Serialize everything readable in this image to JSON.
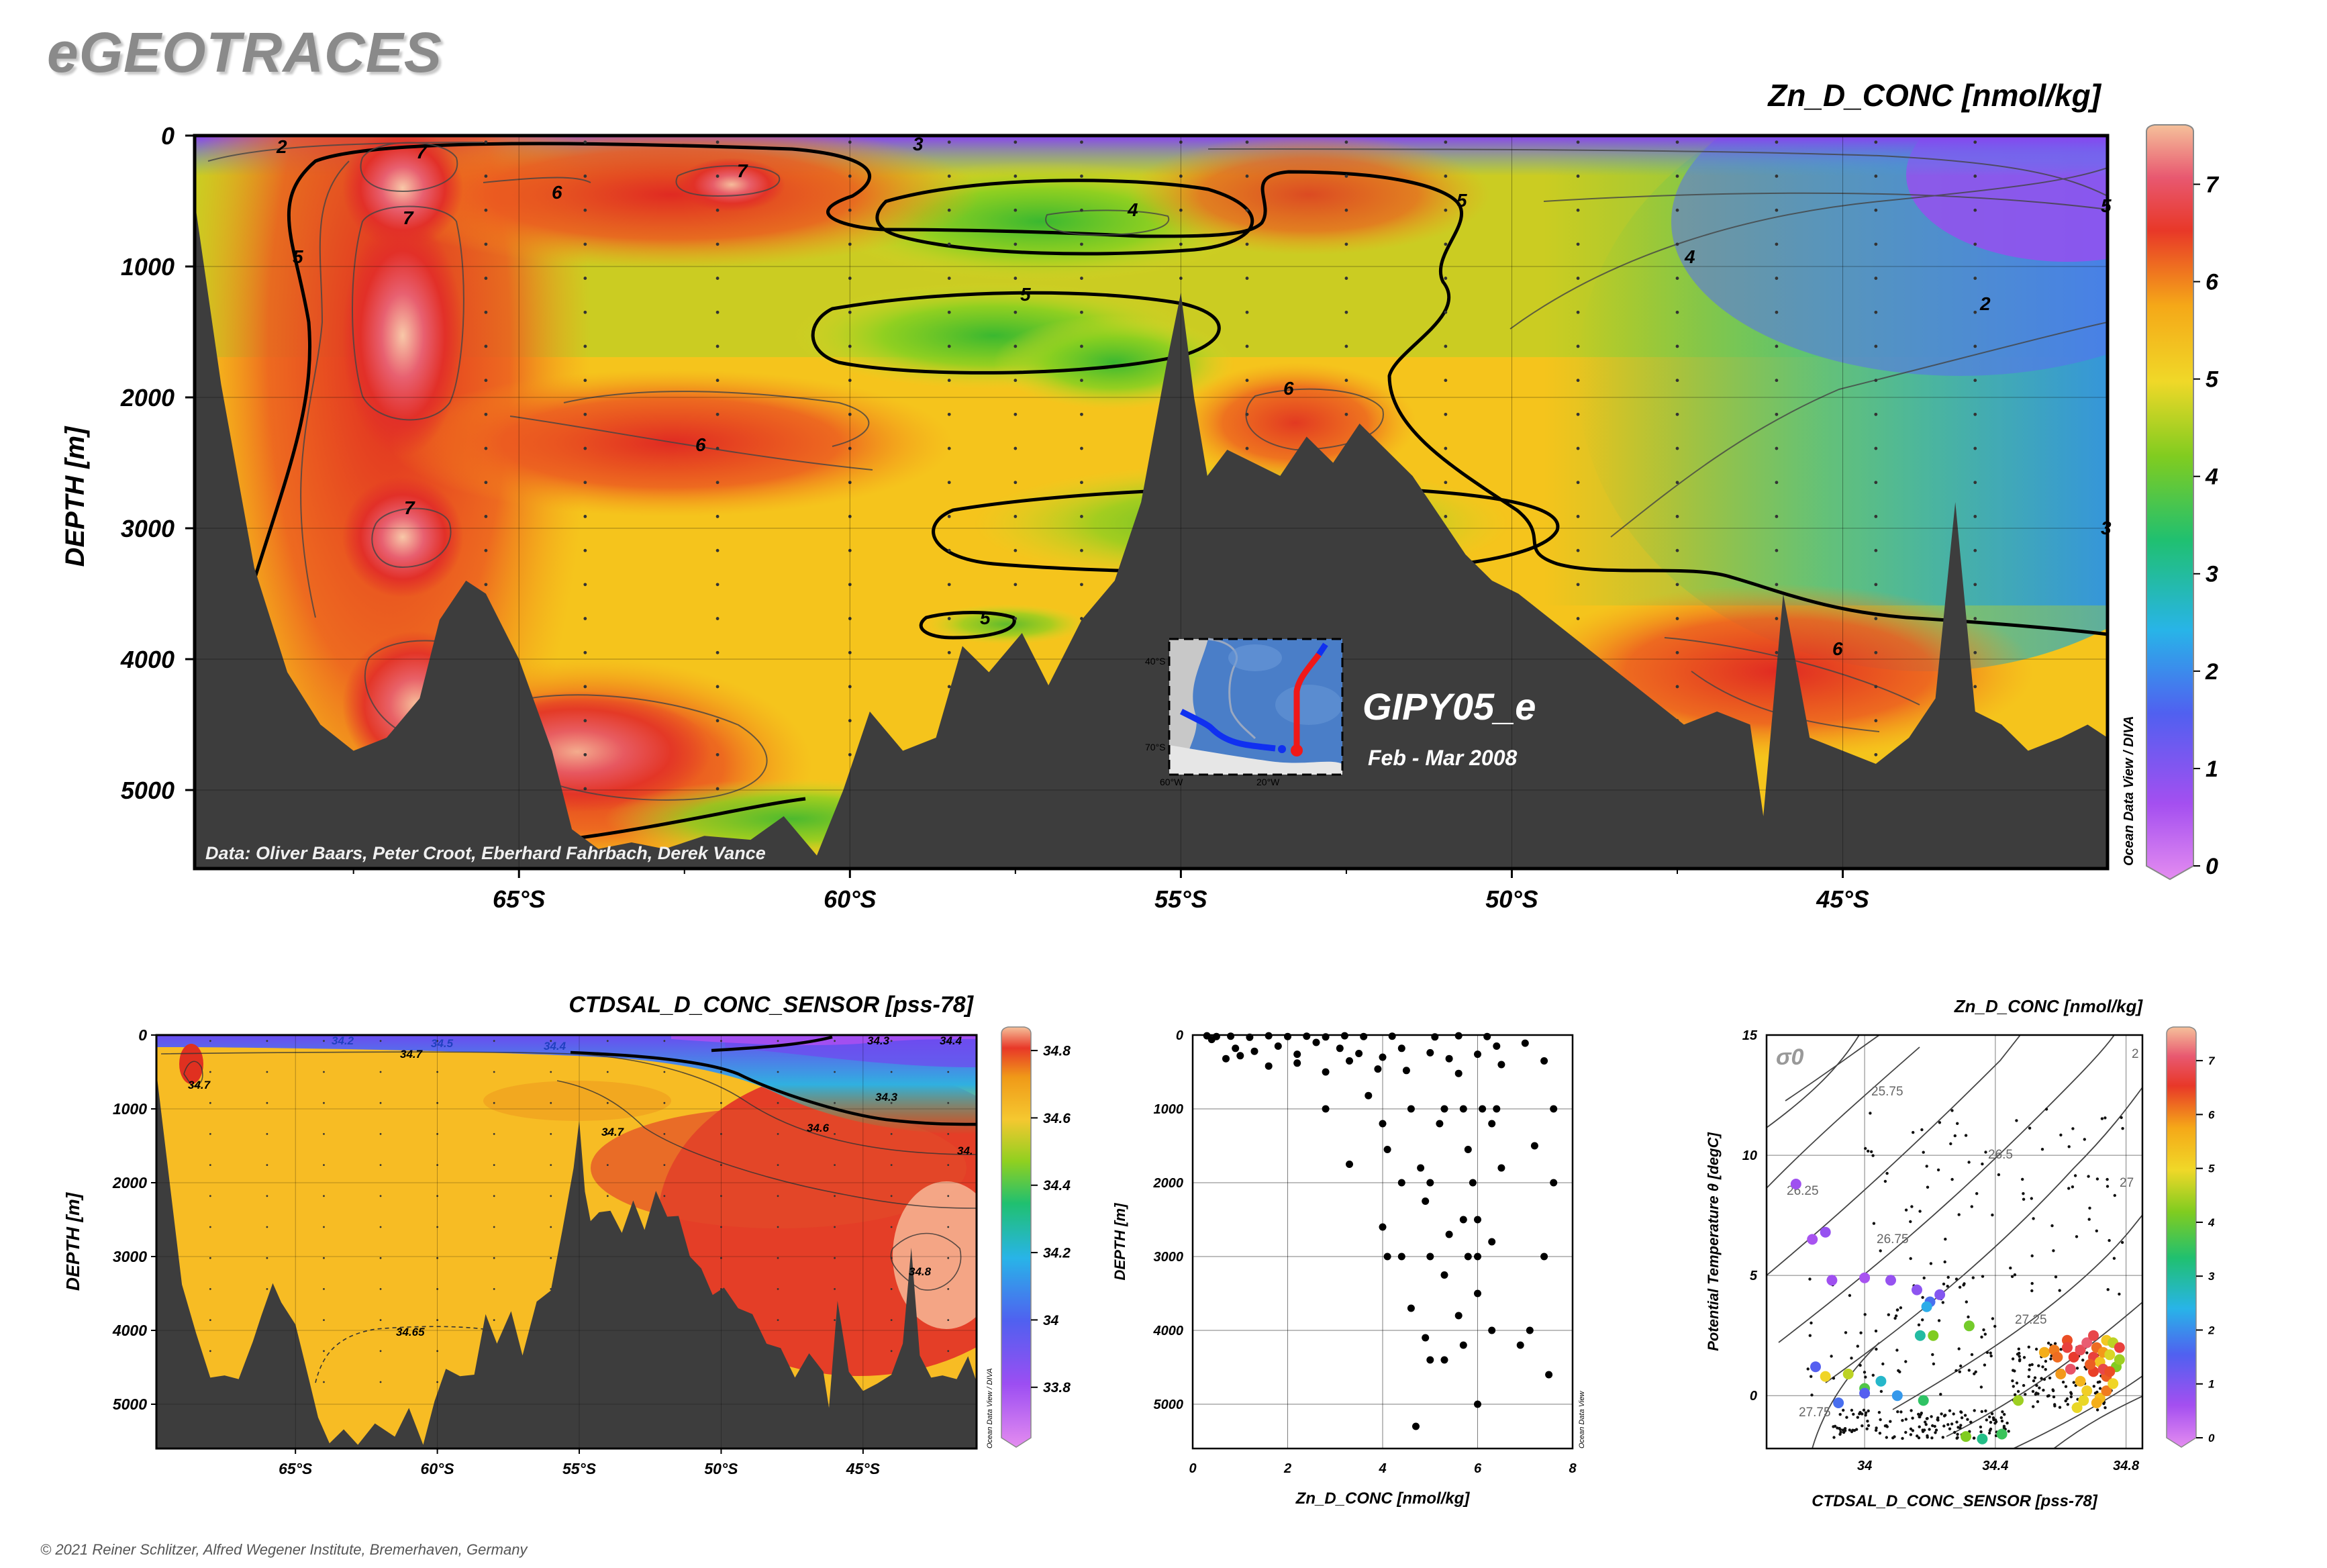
{
  "brand": "eGEOTRACES",
  "copyright": "© 2021 Reiner Schlitzer, Alfred Wegener Institute, Bremerhaven, Germany",
  "main_section": {
    "title": "Zn_D_CONC [nmol/kg]",
    "ylabel": "DEPTH [m]",
    "credit": "Data: Oliver Baars, Peter Croot, Eberhard Fahrbach, Derek Vance",
    "odv_label": "Ocean Data View / DIVA",
    "cruise": "GIPY05_e",
    "period": "Feb - Mar 2008",
    "inset_labels": [
      "40°S",
      "70°S",
      "60°W",
      "20°W"
    ],
    "contour_labels": [
      "2",
      "7",
      "3",
      "6",
      "7",
      "7",
      "5",
      "4",
      "5",
      "5",
      "4",
      "2",
      "5",
      "6",
      "6",
      "7",
      "3",
      "5",
      "6"
    ],
    "colorbar_ticks": [
      "0",
      "1",
      "2",
      "3",
      "4",
      "5",
      "6",
      "7"
    ]
  },
  "sal_section": {
    "title": "CTDSAL_D_CONC_SENSOR [pss-78]",
    "ylabel": "DEPTH [m]",
    "odv_label": "Ocean Data View / DIVA",
    "contour_labels": [
      "34.7",
      "34.7",
      "34.2",
      "34.5",
      "34.4",
      "34.3",
      "34.4",
      "34.3",
      "34.7",
      "34.6",
      "34.",
      "34.8",
      "34.65"
    ],
    "colorbar_ticks": [
      "33.8",
      "34",
      "34.2",
      "34.4",
      "34.6",
      "34.8"
    ]
  },
  "profile": {
    "xlabel": "Zn_D_CONC [nmol/kg]",
    "ylabel": "DEPTH [m]",
    "odv_label": "Ocean Data View"
  },
  "ts_plot": {
    "title": "Zn_D_CONC [nmol/kg]",
    "xlabel": "CTDSAL_D_CONC_SENSOR [pss-78]",
    "ylabel": "Potential Temperature θ [degC]",
    "sigma_label": "σ0",
    "isopycnal_labels": [
      "25.75",
      "26.25",
      "26.5",
      "26.75",
      "27",
      "27.25",
      "27.75",
      "2"
    ],
    "colorbar_ticks": [
      "0",
      "1",
      "2",
      "3",
      "4",
      "5",
      "6",
      "7"
    ]
  },
  "chart_data": [
    {
      "type": "heatmap",
      "title": "Zn_D_CONC [nmol/kg]",
      "ylabel": "DEPTH [m]",
      "x_ticks": [
        "65°S",
        "60°S",
        "55°S",
        "50°S",
        "45°S"
      ],
      "x_tick_values": [
        -65,
        -60,
        -55,
        -50,
        -45
      ],
      "xlim": [
        -69.9,
        -41
      ],
      "y_ticks": [
        "0",
        "1000",
        "2000",
        "3000",
        "4000",
        "5000"
      ],
      "y_tick_values": [
        0,
        1000,
        2000,
        3000,
        4000,
        5000
      ],
      "ylim": [
        0,
        5600
      ],
      "color_range": [
        0,
        7.5
      ],
      "stations_lat": [
        -65.5,
        -64,
        -62,
        -60,
        -58.5,
        -57.5,
        -56.5,
        -55,
        -54,
        -52.5,
        -51,
        -49,
        -47.5,
        -46,
        -44.5,
        -43
      ],
      "bathymetry": {
        "lat": [
          -69.9,
          -69.5,
          -69,
          -68.5,
          -68,
          -67.5,
          -67,
          -66.5,
          -66.2,
          -65.8,
          -65.5,
          -65,
          -64.5,
          -64.2,
          -63.8,
          -63.3,
          -62.8,
          -62.2,
          -61.5,
          -61,
          -60.5,
          -60.1,
          -59.7,
          -59.2,
          -58.7,
          -58.3,
          -57.9,
          -57.4,
          -57,
          -56.5,
          -56,
          -55.6,
          -55.2,
          -55,
          -54.8,
          -54.6,
          -54.3,
          -53.9,
          -53.5,
          -53.1,
          -52.7,
          -52.3,
          -51.9,
          -51.5,
          -51.1,
          -50.7,
          -50.3,
          -49.9,
          -49.4,
          -48.9,
          -48.4,
          -47.9,
          -47.4,
          -46.9,
          -46.4,
          -46.2,
          -45.9,
          -45.5,
          -45,
          -44.5,
          -44,
          -43.6,
          -43.3,
          -43,
          -42.6,
          -42.2,
          -41.7,
          -41.3,
          -41
        ],
        "depth": [
          500,
          1900,
          3300,
          4100,
          4500,
          4700,
          4600,
          4300,
          3700,
          3400,
          3500,
          4000,
          4700,
          5300,
          5450,
          5400,
          5450,
          5350,
          5380,
          5200,
          5500,
          5000,
          4400,
          4700,
          4600,
          3900,
          4100,
          3800,
          4200,
          3700,
          3400,
          2800,
          1700,
          1200,
          2000,
          2600,
          2400,
          2500,
          2600,
          2300,
          2500,
          2200,
          2400,
          2600,
          2900,
          3200,
          3400,
          3500,
          3700,
          3900,
          4100,
          4300,
          4500,
          4400,
          4500,
          5200,
          3500,
          4600,
          4700,
          4800,
          4600,
          4300,
          2800,
          4400,
          4500,
          4700,
          4600,
          4500,
          4600
        ]
      },
      "contour_levels": [
        2,
        3,
        4,
        5,
        6,
        7
      ]
    },
    {
      "type": "heatmap",
      "title": "CTDSAL_D_CONC_SENSOR [pss-78]",
      "ylabel": "DEPTH [m]",
      "x_ticks": [
        "65°S",
        "60°S",
        "55°S",
        "50°S",
        "45°S"
      ],
      "x_tick_values": [
        -65,
        -60,
        -55,
        -50,
        -45
      ],
      "xlim": [
        -69.9,
        -41
      ],
      "y_ticks": [
        "0",
        "1000",
        "2000",
        "3000",
        "4000",
        "5000"
      ],
      "y_tick_values": [
        0,
        1000,
        2000,
        3000,
        4000,
        5000
      ],
      "ylim": [
        0,
        5600
      ],
      "color_range": [
        33.65,
        34.85
      ]
    },
    {
      "type": "scatter",
      "xlabel": "Zn_D_CONC [nmol/kg]",
      "ylabel": "DEPTH [m]",
      "xlim": [
        0,
        8
      ],
      "ylim": [
        0,
        5600
      ],
      "x_ticks": [
        "0",
        "2",
        "4",
        "6",
        "8"
      ],
      "y_ticks": [
        "0",
        "1000",
        "2000",
        "3000",
        "4000",
        "5000"
      ],
      "points": [
        [
          0.3,
          10
        ],
        [
          0.5,
          20
        ],
        [
          0.8,
          15
        ],
        [
          1.2,
          30
        ],
        [
          1.6,
          10
        ],
        [
          2.0,
          20
        ],
        [
          2.4,
          15
        ],
        [
          2.8,
          25
        ],
        [
          3.2,
          10
        ],
        [
          3.6,
          20
        ],
        [
          4.2,
          15
        ],
        [
          5.1,
          25
        ],
        [
          5.6,
          10
        ],
        [
          6.2,
          20
        ],
        [
          0.4,
          60
        ],
        [
          0.9,
          180
        ],
        [
          1.3,
          220
        ],
        [
          1.8,
          150
        ],
        [
          2.2,
          260
        ],
        [
          2.6,
          100
        ],
        [
          3.1,
          180
        ],
        [
          3.5,
          250
        ],
        [
          4.0,
          300
        ],
        [
          4.4,
          180
        ],
        [
          5.0,
          240
        ],
        [
          5.4,
          320
        ],
        [
          6.0,
          260
        ],
        [
          6.4,
          150
        ],
        [
          7.0,
          110
        ],
        [
          7.4,
          350
        ],
        [
          1.6,
          420
        ],
        [
          2.8,
          500
        ],
        [
          3.3,
          350
        ],
        [
          4.5,
          480
        ],
        [
          5.6,
          520
        ],
        [
          6.5,
          400
        ],
        [
          3.9,
          460
        ],
        [
          2.2,
          380
        ],
        [
          1.0,
          280
        ],
        [
          0.7,
          320
        ],
        [
          3.7,
          820
        ],
        [
          4.6,
          1000
        ],
        [
          5.3,
          1000
        ],
        [
          5.7,
          1000
        ],
        [
          6.1,
          1000
        ],
        [
          6.4,
          1000
        ],
        [
          7.6,
          1000
        ],
        [
          2.8,
          1000
        ],
        [
          4.0,
          1200
        ],
        [
          5.2,
          1200
        ],
        [
          6.3,
          1200
        ],
        [
          7.2,
          1500
        ],
        [
          4.1,
          1550
        ],
        [
          5.8,
          1550
        ],
        [
          3.3,
          1750
        ],
        [
          4.8,
          1800
        ],
        [
          6.5,
          1800
        ],
        [
          4.4,
          2000
        ],
        [
          5.0,
          2000
        ],
        [
          5.9,
          2000
        ],
        [
          7.6,
          2000
        ],
        [
          4.9,
          2250
        ],
        [
          5.7,
          2500
        ],
        [
          6.0,
          2500
        ],
        [
          4.0,
          2600
        ],
        [
          5.4,
          2700
        ],
        [
          6.3,
          2800
        ],
        [
          4.4,
          3000
        ],
        [
          4.1,
          3000
        ],
        [
          5.0,
          3000
        ],
        [
          5.8,
          3000
        ],
        [
          6.0,
          3000
        ],
        [
          7.4,
          3000
        ],
        [
          5.3,
          3250
        ],
        [
          6.0,
          3500
        ],
        [
          4.6,
          3700
        ],
        [
          5.6,
          3800
        ],
        [
          7.1,
          4000
        ],
        [
          6.3,
          4000
        ],
        [
          4.9,
          4100
        ],
        [
          5.7,
          4200
        ],
        [
          5.0,
          4400
        ],
        [
          5.3,
          4400
        ],
        [
          7.5,
          4600
        ],
        [
          6.0,
          5000
        ],
        [
          4.7,
          5300
        ],
        [
          6.9,
          4200
        ]
      ]
    },
    {
      "type": "scatter",
      "xlabel": "CTDSAL_D_CONC_SENSOR [pss-78]",
      "ylabel": "Potential Temperature θ [degC]",
      "xlim": [
        33.7,
        34.85
      ],
      "ylim": [
        -2.2,
        15
      ],
      "x_ticks": [
        "34",
        "34.4",
        "34.8"
      ],
      "y_ticks": [
        "0",
        "5",
        "10",
        "15"
      ],
      "color_range": [
        0,
        7.5
      ],
      "colored_points": [
        [
          33.79,
          8.8,
          0.8
        ],
        [
          33.88,
          6.8,
          0.9
        ],
        [
          33.84,
          6.5,
          0.7
        ],
        [
          33.9,
          4.8,
          0.8
        ],
        [
          34.0,
          4.9,
          0.7
        ],
        [
          34.08,
          4.8,
          0.9
        ],
        [
          34.16,
          4.4,
          1.0
        ],
        [
          34.23,
          4.2,
          1.1
        ],
        [
          34.17,
          2.5,
          3.0
        ],
        [
          34.2,
          3.9,
          1.8
        ],
        [
          34.19,
          3.7,
          2.4
        ],
        [
          34.32,
          2.9,
          4.1
        ],
        [
          34.21,
          2.5,
          4.2
        ],
        [
          33.85,
          1.2,
          1.6
        ],
        [
          33.88,
          0.8,
          5.0
        ],
        [
          33.95,
          0.9,
          4.6
        ],
        [
          34.0,
          0.3,
          3.8
        ],
        [
          34.05,
          0.6,
          2.7
        ],
        [
          34.0,
          0.1,
          1.6
        ],
        [
          34.1,
          0.0,
          2.2
        ],
        [
          34.18,
          -0.2,
          3.5
        ],
        [
          33.92,
          -0.3,
          1.8
        ],
        [
          34.36,
          -1.8,
          3.2
        ],
        [
          34.42,
          -1.6,
          3.6
        ],
        [
          34.31,
          -1.7,
          4.2
        ],
        [
          34.47,
          -0.2,
          4.4
        ],
        [
          34.55,
          1.8,
          5.6
        ],
        [
          34.58,
          1.9,
          6.0
        ],
        [
          34.62,
          2.3,
          6.3
        ],
        [
          34.64,
          1.6,
          6.5
        ],
        [
          34.66,
          1.9,
          6.8
        ],
        [
          34.68,
          2.2,
          7.0
        ],
        [
          34.7,
          1.6,
          6.6
        ],
        [
          34.71,
          2.0,
          6.1
        ],
        [
          34.72,
          1.4,
          5.3
        ],
        [
          34.73,
          1.8,
          5.8
        ],
        [
          34.74,
          2.3,
          5.2
        ],
        [
          34.75,
          1.7,
          4.8
        ],
        [
          34.76,
          2.2,
          4.6
        ],
        [
          34.77,
          1.2,
          4.2
        ],
        [
          34.66,
          0.6,
          5.5
        ],
        [
          34.7,
          1.0,
          6.4
        ],
        [
          34.72,
          -0.1,
          5.4
        ],
        [
          34.74,
          0.8,
          6.2
        ],
        [
          34.63,
          1.1,
          6.9
        ],
        [
          34.68,
          0.2,
          5.1
        ],
        [
          34.71,
          -0.3,
          5.6
        ],
        [
          34.74,
          0.2,
          6.0
        ],
        [
          34.69,
          1.3,
          6.2
        ],
        [
          34.73,
          1.1,
          6.7
        ],
        [
          34.6,
          0.9,
          5.8
        ],
        [
          34.76,
          0.5,
          5.0
        ],
        [
          34.78,
          1.5,
          4.4
        ],
        [
          34.67,
          -0.2,
          4.9
        ],
        [
          34.65,
          -0.5,
          4.9
        ],
        [
          34.7,
          2.5,
          6.7
        ],
        [
          34.62,
          2.0,
          6.6
        ],
        [
          34.59,
          1.6,
          6.1
        ],
        [
          34.78,
          2.0,
          6.6
        ],
        [
          34.75,
          1.0,
          6.3
        ]
      ]
    }
  ]
}
